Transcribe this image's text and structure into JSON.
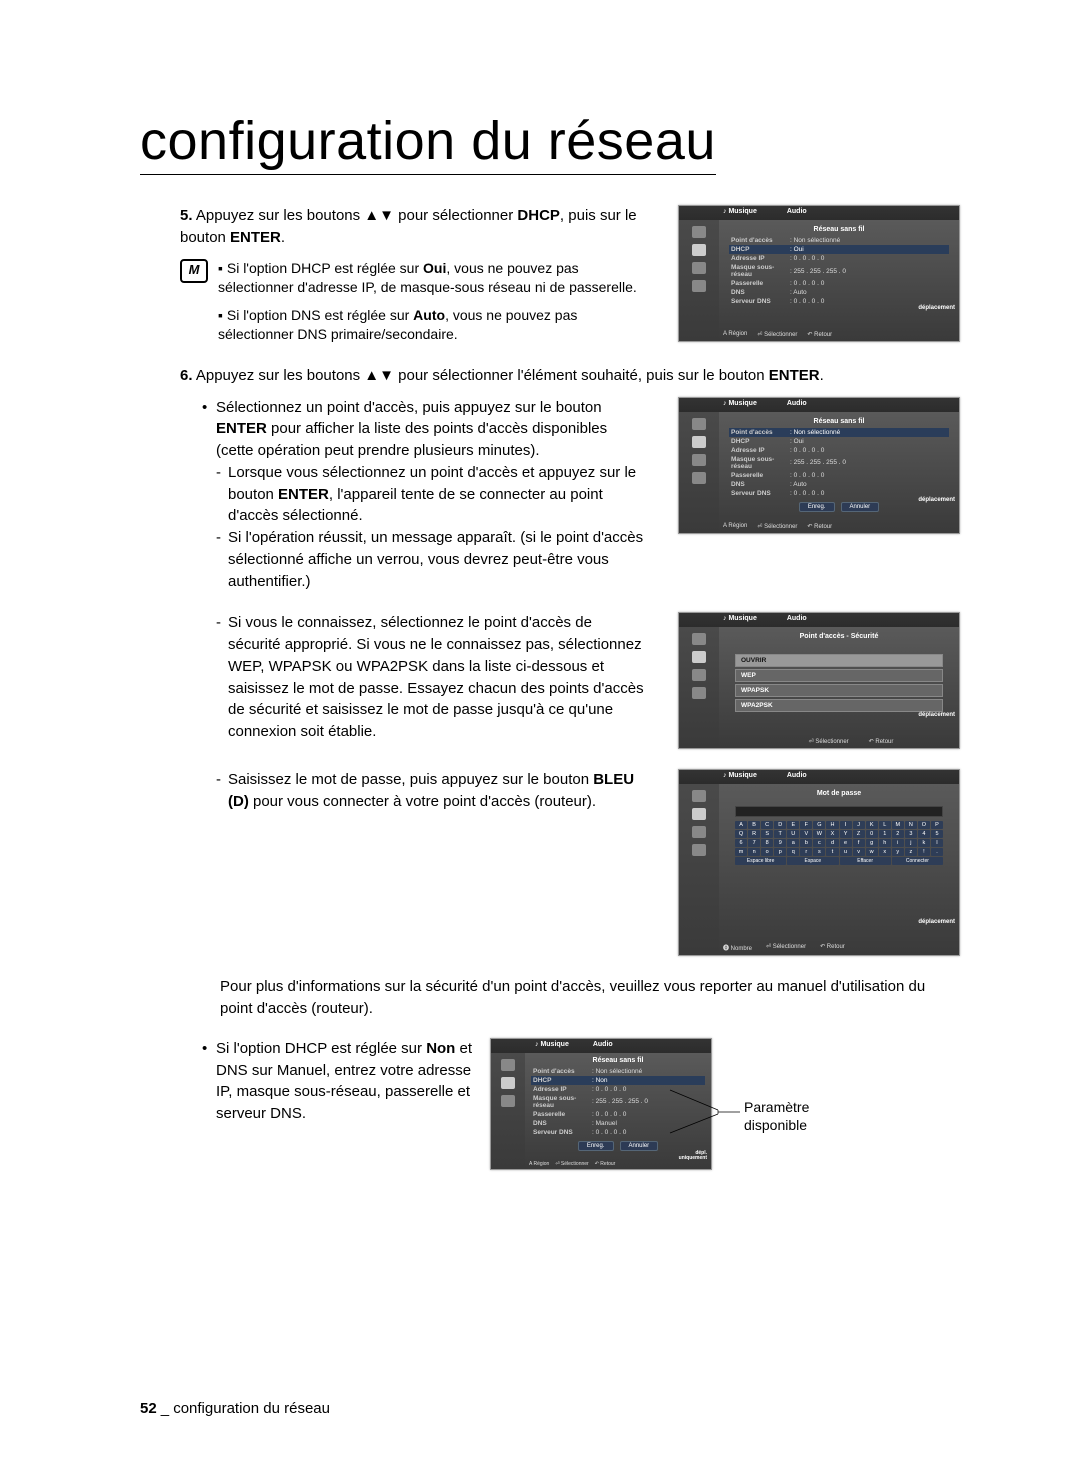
{
  "title": "configuration du réseau",
  "step5": {
    "num": "5.",
    "text_pre": "Appuyez sur les boutons ▲▼ pour sélectionner ",
    "bold1": "DHCP",
    "text_mid": ", puis sur le bouton ",
    "bold2": "ENTER",
    "text_end": "."
  },
  "note1": "Si l'option DHCP est réglée sur Oui, vous ne pouvez pas sélectionner d'adresse IP, de masque-sous réseau ni de passerelle.",
  "note1_bold": "Oui",
  "note2": "Si l'option DNS est réglée sur Auto, vous ne pouvez pas sélectionner DNS primaire/secondaire.",
  "note2_bold": "Auto",
  "step6": {
    "num": "6.",
    "text_pre": "Appuyez sur les boutons ▲▼ pour sélectionner l'élément souhaité, puis sur le bouton ",
    "bold": "ENTER",
    "text_end": "."
  },
  "bullet1_pre": "Sélectionnez un point d'accès, puis appuyez sur le bouton ",
  "bullet1_bold": "ENTER",
  "bullet1_post": " pour afficher la liste des points d'accès disponibles (cette opération peut prendre plusieurs minutes).",
  "sub1_pre": "Lorsque vous sélectionnez un point d'accès et appuyez sur le bouton ",
  "sub1_bold": "ENTER",
  "sub1_post": ", l'appareil tente de se connecter au point d'accès sélectionné.",
  "sub2": "Si l'opération réussit, un message apparaît. (si le point d'accès sélectionné affiche un verrou, vous devrez peut-être vous authentifier.)",
  "sub3": "Si vous le connaissez, sélectionnez le point d'accès de sécurité approprié. Si vous ne le connaissez pas, sélectionnez WEP, WPAPSK ou WPA2PSK dans la liste ci-dessous et saisissez le mot de passe. Essayez chacun des points d'accès de sécurité et saisissez le mot de passe jusqu'à ce qu'une connexion soit établie.",
  "sub4_pre": "Saisissez le mot de passe, puis appuyez sur le bouton ",
  "sub4_bold": "BLEU (D)",
  "sub4_post": " pour vous connecter à votre point d'accès (routeur).",
  "info_text": "Pour plus d'informations sur la sécurité d'un point d'accès, veuillez vous reporter au manuel d'utilisation du point d'accès (routeur).",
  "bullet2_pre": "Si l'option DHCP est réglée sur ",
  "bullet2_bold": "Non",
  "bullet2_post": " et DNS sur Manuel, entrez votre adresse IP, masque sous-réseau, passerelle et serveur DNS.",
  "callout": "Paramètre disponible",
  "footer_num": "52",
  "footer_sep": "_",
  "footer_text": "configuration du réseau",
  "shot_common": {
    "top_label": "Audio",
    "header_reseau": "Réseau sans fil",
    "header_securite": "Point d'accès - Sécurité",
    "header_motdepasse": "Mot de passe",
    "rows": [
      {
        "k": "Point d'accès",
        "v": "Non sélectionné"
      },
      {
        "k": "DHCP",
        "v": "Oui"
      },
      {
        "k": "Adresse IP",
        "v": "0 . 0 . 0 . 0"
      },
      {
        "k": "Masque sous-réseau",
        "v": "255 . 255 . 255 . 0"
      },
      {
        "k": "Passerelle",
        "v": "0 . 0 . 0 . 0"
      },
      {
        "k": "DNS",
        "v": "Auto"
      },
      {
        "k": "Serveur DNS",
        "v": "0 . 0 . 0 . 0"
      }
    ],
    "rows_hl_pa": 0,
    "rows_hl_dhcp": 1,
    "sec_items": [
      "OUVRIR",
      "WEP",
      "WPAPSK",
      "WPA2PSK"
    ],
    "btn_enreg": "Enreg.",
    "btn_annuler": "Annuler",
    "foot_region": "Région",
    "foot_select": "Sélectionner",
    "foot_retour": "Retour",
    "foot_nombre": "Nombre",
    "badge": "déplacement",
    "circles": "① ② ③",
    "kb_ctrl": [
      "Espace libre",
      "Espace",
      "Effacer",
      "Connecter"
    ],
    "kb_chars": "ABCDEFGHIJKLMNOPQRSTUVWXYZ0123456789abcdefghijklmnopqrstuvwxyz!.",
    "dhcp_non": "Non",
    "dns_manuel": "Manuel"
  }
}
